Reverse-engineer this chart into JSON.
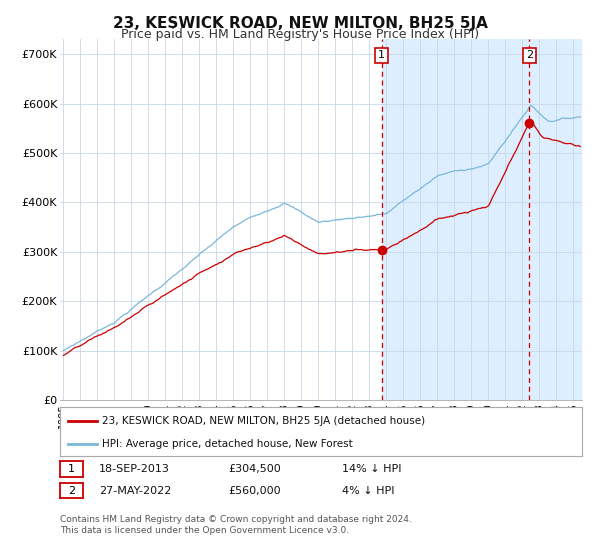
{
  "title": "23, KESWICK ROAD, NEW MILTON, BH25 5JA",
  "subtitle": "Price paid vs. HM Land Registry's House Price Index (HPI)",
  "title_fontsize": 11,
  "subtitle_fontsize": 9,
  "ylabel_ticks": [
    "£0",
    "£100K",
    "£200K",
    "£300K",
    "£400K",
    "£500K",
    "£600K",
    "£700K"
  ],
  "ytick_vals": [
    0,
    100000,
    200000,
    300000,
    400000,
    500000,
    600000,
    700000
  ],
  "ylim": [
    0,
    730000
  ],
  "xlim_start": 1994.8,
  "xlim_end": 2025.5,
  "background_color": "#ffffff",
  "plot_bg_color": "#ffffff",
  "grid_color": "#c8d8e8",
  "shade_color": "#ddeeff",
  "shade_start": 2013.72,
  "shade_end": 2025.5,
  "hpi_line_color": "#7ab8d9",
  "price_line_color": "#cc0000",
  "point1_x": 2013.72,
  "point1_y": 304500,
  "point2_x": 2022.4,
  "point2_y": 560000,
  "legend_line1": "23, KESWICK ROAD, NEW MILTON, BH25 5JA (detached house)",
  "legend_line2": "HPI: Average price, detached house, New Forest",
  "point1_date": "18-SEP-2013",
  "point1_price": "£304,500",
  "point1_hpi": "14% ↓ HPI",
  "point2_date": "27-MAY-2022",
  "point2_price": "£560,000",
  "point2_hpi": "4% ↓ HPI",
  "footer1": "Contains HM Land Registry data © Crown copyright and database right 2024.",
  "footer2": "This data is licensed under the Open Government Licence v3.0."
}
